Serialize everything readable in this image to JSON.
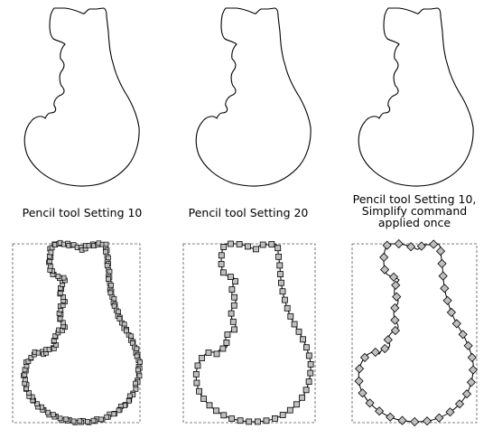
{
  "captions": [
    {
      "lines": [
        "Pencil tool Setting 10"
      ]
    },
    {
      "lines": [
        "Pencil tool Setting 20"
      ]
    },
    {
      "lines": [
        "Pencil tool Setting 10,",
        "Simplify command",
        "applied once"
      ]
    }
  ],
  "node_markers": [
    "dense-square",
    "square",
    "diamond"
  ],
  "colors": {
    "stroke": "#000000",
    "node_fill": "#c0c0c0",
    "bbox": "#555555",
    "background": "#ffffff"
  }
}
